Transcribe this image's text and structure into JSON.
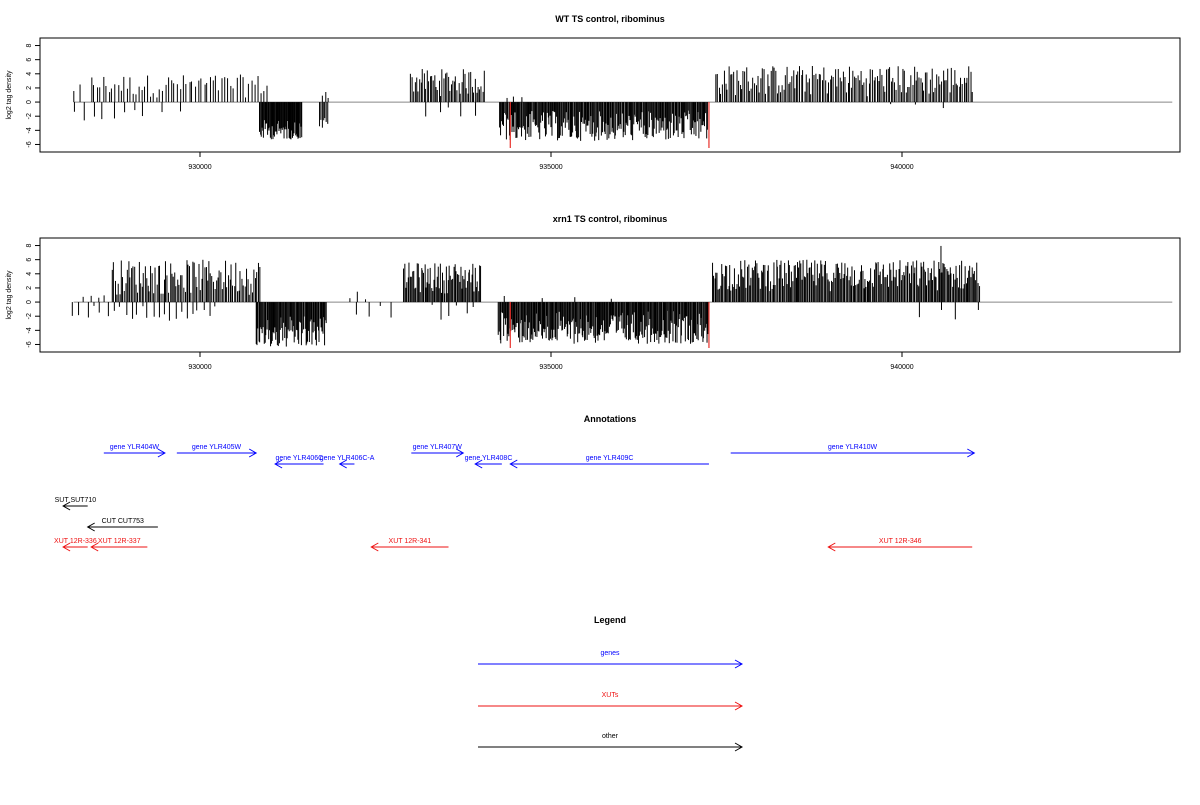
{
  "chart_data": [
    {
      "type": "bar",
      "title": "WT TS control, ribominus",
      "ylabel": "log2 tag density",
      "xlabel": "",
      "xlim": [
        928000,
        944000
      ],
      "ylim": [
        -6.5,
        8.5
      ],
      "yticks": [
        8,
        6,
        4,
        2,
        0,
        -2,
        -4,
        -6
      ],
      "xticks": [
        930000,
        935000,
        940000
      ],
      "grid": false,
      "baseline": 0,
      "colors": {
        "bars": "#000000",
        "highlight": "#e8302a",
        "baseline": "#888888"
      },
      "segments": [
        {
          "from": 928200,
          "to": 929050,
          "sign": -1,
          "min": 0.6,
          "max": 2.6,
          "n": 7
        },
        {
          "from": 928200,
          "to": 928300,
          "sign": 1,
          "min": 1.0,
          "max": 2.8,
          "n": 2
        },
        {
          "from": 928450,
          "to": 930950,
          "sign": 1,
          "min": 0.6,
          "max": 3.9,
          "n": 60
        },
        {
          "from": 929200,
          "to": 929750,
          "sign": -1,
          "min": 0.5,
          "max": 2.5,
          "n": 3
        },
        {
          "from": 930850,
          "to": 931450,
          "sign": -1,
          "min": 2.5,
          "max": 5.3,
          "n": 55
        },
        {
          "from": 931700,
          "to": 931820,
          "sign": -1,
          "min": 2.0,
          "max": 3.9,
          "n": 7
        },
        {
          "from": 931750,
          "to": 931830,
          "sign": 1,
          "min": 0.5,
          "max": 1.5,
          "n": 3
        },
        {
          "from": 933000,
          "to": 934050,
          "sign": 1,
          "min": 0.8,
          "max": 4.7,
          "n": 50
        },
        {
          "from": 933250,
          "to": 933900,
          "sign": -1,
          "min": 0.3,
          "max": 2.6,
          "n": 5
        },
        {
          "from": 934270,
          "to": 937230,
          "sign": -1,
          "min": 1.2,
          "max": 5.5,
          "n": 220
        },
        {
          "from": 934350,
          "to": 934600,
          "sign": 1,
          "min": 0.3,
          "max": 0.9,
          "n": 3
        },
        {
          "from": 937350,
          "to": 941000,
          "sign": 1,
          "min": 0.8,
          "max": 5.2,
          "n": 160
        },
        {
          "from": 939900,
          "to": 940600,
          "sign": -1,
          "min": 0.2,
          "max": 1.0,
          "n": 3
        }
      ],
      "highlights": [
        {
          "x": 934420,
          "y": -6.5
        },
        {
          "x": 937250,
          "y": -6.5
        }
      ]
    },
    {
      "type": "bar",
      "title": "xrn1 TS control, ribominus",
      "ylabel": "log2 tag density",
      "xlabel": "",
      "xlim": [
        928000,
        944000
      ],
      "ylim": [
        -6.5,
        8.5
      ],
      "yticks": [
        8,
        6,
        4,
        2,
        0,
        -2,
        -4,
        -6
      ],
      "xticks": [
        930000,
        935000,
        940000
      ],
      "grid": false,
      "baseline": 0,
      "colors": {
        "bars": "#000000",
        "highlight": "#e8302a",
        "baseline": "#888888"
      },
      "segments": [
        {
          "from": 928200,
          "to": 929050,
          "sign": -1,
          "min": 0.5,
          "max": 2.5,
          "n": 10
        },
        {
          "from": 928350,
          "to": 928650,
          "sign": 1,
          "min": 0.5,
          "max": 1.2,
          "n": 4
        },
        {
          "from": 928750,
          "to": 930850,
          "sign": 1,
          "min": 1.0,
          "max": 6.0,
          "n": 100
        },
        {
          "from": 929100,
          "to": 930200,
          "sign": -1,
          "min": 0.5,
          "max": 2.8,
          "n": 15
        },
        {
          "from": 930800,
          "to": 931800,
          "sign": -1,
          "min": 2.0,
          "max": 6.6,
          "n": 80
        },
        {
          "from": 932150,
          "to": 932350,
          "sign": 1,
          "min": 0.3,
          "max": 1.5,
          "n": 3
        },
        {
          "from": 932250,
          "to": 932700,
          "sign": -1,
          "min": 0.5,
          "max": 2.2,
          "n": 4
        },
        {
          "from": 932900,
          "to": 934000,
          "sign": 1,
          "min": 1.2,
          "max": 5.6,
          "n": 70
        },
        {
          "from": 933300,
          "to": 933900,
          "sign": -1,
          "min": 0.3,
          "max": 2.6,
          "n": 6
        },
        {
          "from": 934250,
          "to": 937250,
          "sign": -1,
          "min": 1.2,
          "max": 5.9,
          "n": 240
        },
        {
          "from": 934400,
          "to": 935800,
          "sign": 1,
          "min": 0.2,
          "max": 0.9,
          "n": 4
        },
        {
          "from": 937300,
          "to": 941100,
          "sign": 1,
          "min": 1.5,
          "max": 6.0,
          "n": 230
        },
        {
          "from": 940550,
          "to": 940570,
          "sign": 1,
          "min": 7.9,
          "max": 8.0,
          "n": 1
        },
        {
          "from": 940300,
          "to": 941050,
          "sign": -1,
          "min": 0.3,
          "max": 2.6,
          "n": 4
        }
      ],
      "highlights": [
        {
          "x": 934420,
          "y": -6.5
        },
        {
          "x": 937250,
          "y": -6.5
        }
      ]
    }
  ],
  "annotations": {
    "title": "Annotations",
    "features": [
      {
        "label": "gene YLR404W",
        "start": 928630,
        "end": 929500,
        "strand": "+",
        "color": "#0000ff",
        "row": 0
      },
      {
        "label": "gene YLR405W",
        "start": 929670,
        "end": 930800,
        "strand": "+",
        "color": "#0000ff",
        "row": 0
      },
      {
        "label": "gene YLR406C",
        "start": 931070,
        "end": 931760,
        "strand": "-",
        "color": "#0000ff",
        "row": 1
      },
      {
        "label": "gene YLR406C-A",
        "start": 931990,
        "end": 932200,
        "strand": "-",
        "color": "#0000ff",
        "row": 1
      },
      {
        "label": "gene YLR407W",
        "start": 933010,
        "end": 933750,
        "strand": "+",
        "color": "#0000ff",
        "row": 0
      },
      {
        "label": "gene YLR408C",
        "start": 933920,
        "end": 934300,
        "strand": "-",
        "color": "#0000ff",
        "row": 1
      },
      {
        "label": "gene YLR409C",
        "start": 934420,
        "end": 937250,
        "strand": "-",
        "color": "#0000ff",
        "row": 1
      },
      {
        "label": "gene YLR410W",
        "start": 937560,
        "end": 941030,
        "strand": "+",
        "color": "#0000ff",
        "row": 0
      },
      {
        "label": "SUT SUT710",
        "start": 928050,
        "end": 928400,
        "strand": "-",
        "color": "#000000",
        "row": 3
      },
      {
        "label": "CUT CUT753",
        "start": 928400,
        "end": 929400,
        "strand": "-",
        "color": "#000000",
        "row": 4
      },
      {
        "label": "XUT 12R-336",
        "start": 928050,
        "end": 928400,
        "strand": "-",
        "color": "#ee1111",
        "row": 5
      },
      {
        "label": "XUT 12R-337",
        "start": 928450,
        "end": 929250,
        "strand": "-",
        "color": "#ee1111",
        "row": 5
      },
      {
        "label": "XUT 12R-341",
        "start": 932440,
        "end": 933540,
        "strand": "-",
        "color": "#ee1111",
        "row": 5
      },
      {
        "label": "XUT 12R-346",
        "start": 938950,
        "end": 941000,
        "strand": "-",
        "color": "#ee1111",
        "row": 5
      }
    ]
  },
  "legend": {
    "title": "Legend",
    "items": [
      {
        "label": "genes",
        "color": "#0000ff"
      },
      {
        "label": "XUTs",
        "color": "#ee1111"
      },
      {
        "label": "other",
        "color": "#000000"
      }
    ]
  }
}
